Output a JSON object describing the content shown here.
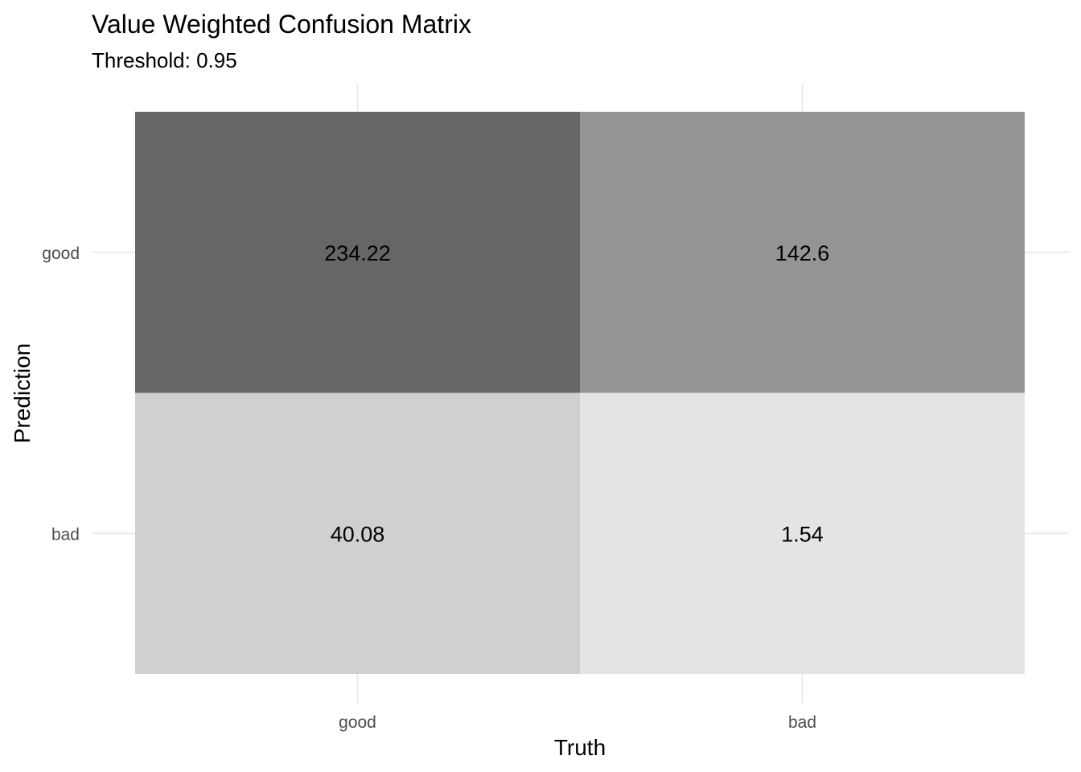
{
  "chart_data": {
    "type": "heatmap",
    "title": "Value Weighted Confusion Matrix",
    "subtitle": "Threshold: 0.95",
    "xlabel": "Truth",
    "ylabel": "Prediction",
    "x_categories": [
      "good",
      "bad"
    ],
    "y_categories": [
      "good",
      "bad"
    ],
    "cells": [
      {
        "truth": "good",
        "prediction": "good",
        "value": 234.22,
        "label": "234.22",
        "color": "#666666"
      },
      {
        "truth": "bad",
        "prediction": "good",
        "value": 142.6,
        "label": "142.6",
        "color": "#959595"
      },
      {
        "truth": "good",
        "prediction": "bad",
        "value": 40.08,
        "label": "40.08",
        "color": "#d0d0d0"
      },
      {
        "truth": "bad",
        "prediction": "bad",
        "value": 1.54,
        "label": "1.54",
        "color": "#e4e4e4"
      }
    ],
    "grid": true,
    "legend": "none"
  }
}
